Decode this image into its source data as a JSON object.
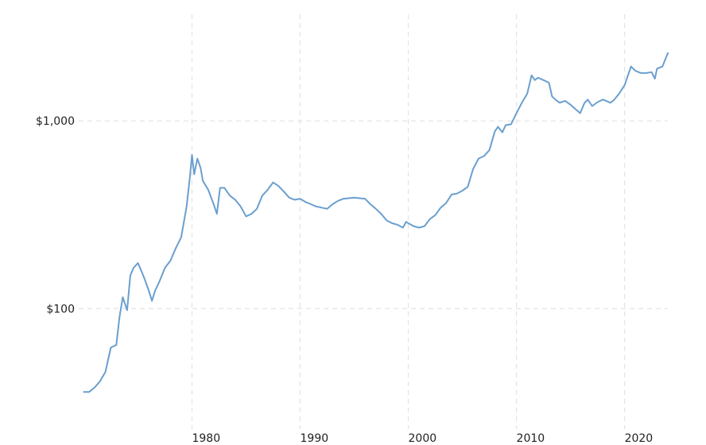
{
  "colors": {
    "background": "#ffffff",
    "line": "#6a9fcf",
    "grid": "#e3e3e3",
    "text": "#222222"
  },
  "chart_data": {
    "type": "line",
    "title": "",
    "xlabel": "",
    "ylabel": "",
    "y_scale": "log",
    "grid": true,
    "xlim": [
      1969.6,
      2024.0
    ],
    "ylim": [
      22.8,
      3700
    ],
    "x_ticks": [
      {
        "value": 1980,
        "label": "1980"
      },
      {
        "value": 1990,
        "label": "1990"
      },
      {
        "value": 2000,
        "label": "2000"
      },
      {
        "value": 2010,
        "label": "2010"
      },
      {
        "value": 2020,
        "label": "2020"
      }
    ],
    "y_ticks": [
      {
        "value": 100,
        "label": "$100"
      },
      {
        "value": 1000,
        "label": "$1,000"
      }
    ],
    "series": [
      {
        "x": [
          1970.0,
          1970.5,
          1971.0,
          1971.5,
          1972.0,
          1972.5,
          1973.0,
          1973.3,
          1973.6,
          1974.0,
          1974.3,
          1974.6,
          1975.0,
          1975.3,
          1975.6,
          1976.0,
          1976.3,
          1976.6,
          1977.0,
          1977.5,
          1978.0,
          1978.5,
          1979.0,
          1979.5,
          1979.8,
          1980.0,
          1980.2,
          1980.5,
          1980.8,
          1981.0,
          1981.5,
          1982.0,
          1982.3,
          1982.6,
          1983.0,
          1983.5,
          1984.0,
          1984.5,
          1985.0,
          1985.5,
          1986.0,
          1986.5,
          1987.0,
          1987.5,
          1988.0,
          1988.5,
          1989.0,
          1989.5,
          1990.0,
          1990.5,
          1991.0,
          1991.5,
          1992.0,
          1992.5,
          1993.0,
          1993.5,
          1994.0,
          1995.0,
          1996.0,
          1996.5,
          1997.0,
          1997.5,
          1998.0,
          1998.5,
          1999.0,
          1999.5,
          1999.8,
          2000.0,
          2000.5,
          2001.0,
          2001.5,
          2002.0,
          2002.5,
          2003.0,
          2003.5,
          2004.0,
          2004.5,
          2005.0,
          2005.5,
          2006.0,
          2006.5,
          2007.0,
          2007.5,
          2008.0,
          2008.3,
          2008.7,
          2009.0,
          2009.5,
          2010.0,
          2010.5,
          2011.0,
          2011.4,
          2011.7,
          2012.0,
          2012.5,
          2013.0,
          2013.3,
          2013.6,
          2014.0,
          2014.5,
          2015.0,
          2015.5,
          2015.9,
          2016.3,
          2016.6,
          2017.0,
          2017.5,
          2018.0,
          2018.7,
          2019.0,
          2019.5,
          2020.0,
          2020.6,
          2021.0,
          2021.5,
          2022.0,
          2022.5,
          2022.8,
          2023.0,
          2023.5,
          2024.0
        ],
        "values": [
          36,
          36,
          38,
          41,
          46,
          62,
          64,
          90,
          115,
          98,
          150,
          165,
          175,
          160,
          145,
          125,
          110,
          125,
          140,
          165,
          180,
          210,
          240,
          350,
          500,
          660,
          520,
          630,
          560,
          480,
          430,
          360,
          320,
          440,
          440,
          400,
          380,
          350,
          310,
          320,
          340,
          400,
          430,
          470,
          450,
          420,
          390,
          380,
          385,
          370,
          360,
          350,
          345,
          340,
          360,
          375,
          385,
          390,
          385,
          360,
          340,
          320,
          295,
          285,
          280,
          270,
          290,
          285,
          275,
          270,
          275,
          300,
          315,
          345,
          365,
          405,
          410,
          425,
          445,
          555,
          630,
          650,
          700,
          880,
          930,
          870,
          950,
          960,
          1100,
          1250,
          1400,
          1750,
          1650,
          1700,
          1650,
          1600,
          1350,
          1300,
          1250,
          1280,
          1220,
          1150,
          1100,
          1250,
          1300,
          1200,
          1260,
          1300,
          1250,
          1290,
          1400,
          1550,
          1950,
          1850,
          1800,
          1800,
          1820,
          1680,
          1900,
          1950,
          2300
        ]
      }
    ]
  }
}
